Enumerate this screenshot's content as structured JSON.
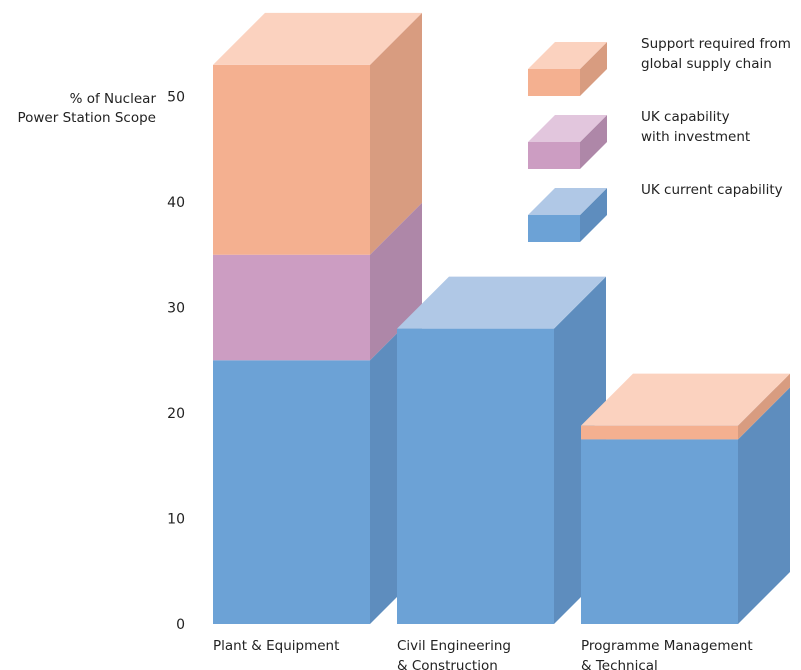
{
  "chart_data": {
    "type": "bar",
    "stacked": true,
    "three_d": true,
    "title": "",
    "xlabel": "",
    "ylabel": "% of Nuclear\nPower Station Scope",
    "ylim": [
      0,
      50
    ],
    "yticks": [
      "0",
      "10",
      "20",
      "30",
      "40",
      "50"
    ],
    "grid": false,
    "legend_position": "top-right",
    "categories": [
      "Plant & Equipment",
      "Civil Engineering\n& Construction",
      "Programme Management\n& Technical"
    ],
    "series": [
      {
        "name": "UK current capability",
        "values": [
          25,
          28,
          17.5
        ],
        "color": "#6CA2D6",
        "top_color": "#B0C8E6",
        "side_color": "#5E8DBE"
      },
      {
        "name": "UK capability\nwith investment",
        "values": [
          10,
          0,
          0
        ],
        "color": "#CC9DC2",
        "top_color": "#E2C6DD",
        "side_color": "#AE87A8"
      },
      {
        "name": "Support required from\nglobal supply chain",
        "values": [
          18,
          0,
          1.3
        ],
        "color": "#F4B090",
        "top_color": "#FBD2BF",
        "side_color": "#D89C80"
      }
    ]
  }
}
